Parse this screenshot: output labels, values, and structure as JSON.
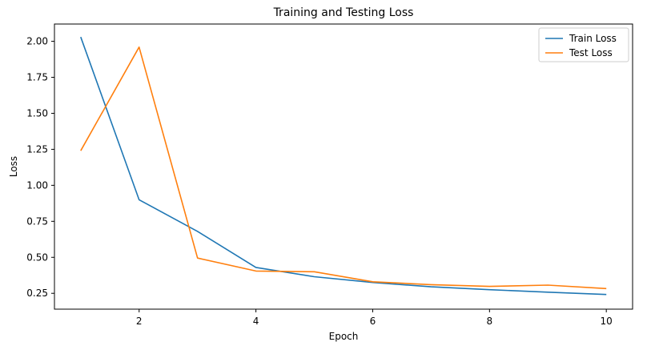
{
  "chart_data": {
    "type": "line",
    "title": "Training and Testing Loss",
    "xlabel": "Epoch",
    "ylabel": "Loss",
    "x": [
      1,
      2,
      3,
      4,
      5,
      6,
      7,
      8,
      9,
      10
    ],
    "xlim": [
      0.55,
      10.45
    ],
    "ylim": [
      0.14,
      2.12
    ],
    "xticks": [
      2,
      4,
      6,
      8,
      10
    ],
    "xtick_labels": [
      "2",
      "4",
      "6",
      "8",
      "10"
    ],
    "yticks": [
      0.25,
      0.5,
      0.75,
      1.0,
      1.25,
      1.5,
      1.75,
      2.0
    ],
    "ytick_labels": [
      "0.25",
      "0.50",
      "0.75",
      "1.00",
      "1.25",
      "1.50",
      "1.75",
      "2.00"
    ],
    "grid": false,
    "legend_position": "top-right",
    "series": [
      {
        "name": "Train Loss",
        "color": "#1f77b4",
        "values": [
          2.03,
          0.9,
          0.68,
          0.43,
          0.365,
          0.325,
          0.295,
          0.275,
          0.258,
          0.242
        ]
      },
      {
        "name": "Test Loss",
        "color": "#ff7f0e",
        "values": [
          1.24,
          1.96,
          0.495,
          0.405,
          0.4,
          0.33,
          0.31,
          0.298,
          0.307,
          0.283
        ]
      }
    ]
  }
}
